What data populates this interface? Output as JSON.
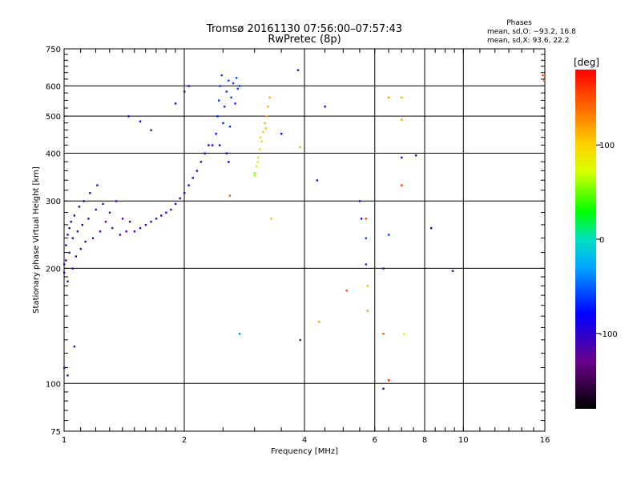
{
  "chart_data": {
    "type": "scatter",
    "title": "Tromsø 20161130 07:56:00–07:57:43",
    "subtitle": "RwPretec (8p)",
    "xlabel": "Frequency [MHz]",
    "ylabel": "Stationary phase Virtual Height [km]",
    "xscale": "log",
    "yscale": "log",
    "xlim": [
      1,
      16
    ],
    "ylim": [
      75,
      750
    ],
    "x_ticks": [
      1,
      2,
      4,
      6,
      8,
      10,
      16
    ],
    "y_ticks": [
      75,
      100,
      200,
      300,
      400,
      500,
      600,
      750
    ],
    "grid": true,
    "phases_box": {
      "title": "Phases",
      "line_o": "mean, sd,O: −93.2, 16.8",
      "line_x": "mean, sd,X:  93.6, 22.2"
    },
    "colorbar": {
      "label": "[deg]",
      "range": [
        -180,
        180
      ],
      "ticks": [
        100,
        0,
        -100
      ]
    },
    "points": [
      {
        "x": 1.0,
        "y": 195,
        "p": -105
      },
      {
        "x": 1.0,
        "y": 205,
        "p": -110
      },
      {
        "x": 1.01,
        "y": 210,
        "p": -100
      },
      {
        "x": 1.01,
        "y": 230,
        "p": -100
      },
      {
        "x": 1.02,
        "y": 245,
        "p": -95
      },
      {
        "x": 1.02,
        "y": 185,
        "p": -110
      },
      {
        "x": 1.03,
        "y": 255,
        "p": -100
      },
      {
        "x": 1.03,
        "y": 220,
        "p": -108
      },
      {
        "x": 1.04,
        "y": 265,
        "p": -95
      },
      {
        "x": 1.05,
        "y": 200,
        "p": -112
      },
      {
        "x": 1.05,
        "y": 240,
        "p": -100
      },
      {
        "x": 1.06,
        "y": 275,
        "p": -95
      },
      {
        "x": 1.07,
        "y": 215,
        "p": -110
      },
      {
        "x": 1.08,
        "y": 250,
        "p": -100
      },
      {
        "x": 1.09,
        "y": 290,
        "p": -95
      },
      {
        "x": 1.1,
        "y": 225,
        "p": -115
      },
      {
        "x": 1.11,
        "y": 260,
        "p": -100
      },
      {
        "x": 1.12,
        "y": 300,
        "p": -100
      },
      {
        "x": 1.13,
        "y": 235,
        "p": -110
      },
      {
        "x": 1.15,
        "y": 270,
        "p": -105
      },
      {
        "x": 1.16,
        "y": 315,
        "p": -100
      },
      {
        "x": 1.18,
        "y": 240,
        "p": -120
      },
      {
        "x": 1.2,
        "y": 285,
        "p": -105
      },
      {
        "x": 1.21,
        "y": 330,
        "p": -95
      },
      {
        "x": 1.23,
        "y": 250,
        "p": -115
      },
      {
        "x": 1.25,
        "y": 295,
        "p": -110
      },
      {
        "x": 1.27,
        "y": 265,
        "p": -125
      },
      {
        "x": 1.3,
        "y": 280,
        "p": -120
      },
      {
        "x": 1.32,
        "y": 255,
        "p": -130
      },
      {
        "x": 1.35,
        "y": 300,
        "p": -110
      },
      {
        "x": 1.38,
        "y": 245,
        "p": -125
      },
      {
        "x": 1.4,
        "y": 270,
        "p": -115
      },
      {
        "x": 1.43,
        "y": 250,
        "p": -120
      },
      {
        "x": 1.46,
        "y": 265,
        "p": -110
      },
      {
        "x": 1.5,
        "y": 250,
        "p": -115
      },
      {
        "x": 1.55,
        "y": 255,
        "p": -110
      },
      {
        "x": 1.6,
        "y": 260,
        "p": -108
      },
      {
        "x": 1.65,
        "y": 265,
        "p": -105
      },
      {
        "x": 1.7,
        "y": 270,
        "p": -105
      },
      {
        "x": 1.75,
        "y": 275,
        "p": -108
      },
      {
        "x": 1.8,
        "y": 280,
        "p": -105
      },
      {
        "x": 1.85,
        "y": 285,
        "p": -100
      },
      {
        "x": 1.9,
        "y": 295,
        "p": -105
      },
      {
        "x": 1.95,
        "y": 305,
        "p": -100
      },
      {
        "x": 2.0,
        "y": 315,
        "p": -100
      },
      {
        "x": 2.05,
        "y": 330,
        "p": -100
      },
      {
        "x": 2.1,
        "y": 345,
        "p": -95
      },
      {
        "x": 2.15,
        "y": 360,
        "p": -95
      },
      {
        "x": 2.2,
        "y": 380,
        "p": -100
      },
      {
        "x": 2.25,
        "y": 400,
        "p": -90
      },
      {
        "x": 2.3,
        "y": 420,
        "p": -90
      },
      {
        "x": 1.45,
        "y": 500,
        "p": -100
      },
      {
        "x": 1.55,
        "y": 485,
        "p": -95
      },
      {
        "x": 1.65,
        "y": 460,
        "p": -110
      },
      {
        "x": 1.9,
        "y": 540,
        "p": -105
      },
      {
        "x": 2.0,
        "y": 580,
        "p": -100
      },
      {
        "x": 2.05,
        "y": 600,
        "p": -95
      },
      {
        "x": 1.0,
        "y": 110,
        "p": -110
      },
      {
        "x": 1.02,
        "y": 105,
        "p": -105
      },
      {
        "x": 1.06,
        "y": 125,
        "p": -100
      },
      {
        "x": 2.4,
        "y": 450,
        "p": -75
      },
      {
        "x": 2.42,
        "y": 500,
        "p": -70
      },
      {
        "x": 2.44,
        "y": 550,
        "p": -65
      },
      {
        "x": 2.46,
        "y": 600,
        "p": -60
      },
      {
        "x": 2.48,
        "y": 640,
        "p": -60
      },
      {
        "x": 2.45,
        "y": 420,
        "p": -80
      },
      {
        "x": 2.5,
        "y": 480,
        "p": -70
      },
      {
        "x": 2.52,
        "y": 530,
        "p": -65
      },
      {
        "x": 2.55,
        "y": 580,
        "p": -62
      },
      {
        "x": 2.58,
        "y": 620,
        "p": -58
      },
      {
        "x": 2.6,
        "y": 470,
        "p": -72
      },
      {
        "x": 2.62,
        "y": 560,
        "p": -65
      },
      {
        "x": 2.65,
        "y": 610,
        "p": -60
      },
      {
        "x": 2.68,
        "y": 540,
        "p": -68
      },
      {
        "x": 2.7,
        "y": 630,
        "p": -60
      },
      {
        "x": 2.55,
        "y": 400,
        "p": -80
      },
      {
        "x": 2.72,
        "y": 590,
        "p": -62
      },
      {
        "x": 2.35,
        "y": 420,
        "p": -85
      },
      {
        "x": 2.58,
        "y": 380,
        "p": -90
      },
      {
        "x": 2.75,
        "y": 600,
        "p": -58
      },
      {
        "x": 3.0,
        "y": 350,
        "p": 60
      },
      {
        "x": 3.03,
        "y": 370,
        "p": 70
      },
      {
        "x": 3.06,
        "y": 390,
        "p": 85
      },
      {
        "x": 3.09,
        "y": 410,
        "p": 95
      },
      {
        "x": 3.12,
        "y": 430,
        "p": 100
      },
      {
        "x": 3.15,
        "y": 455,
        "p": 105
      },
      {
        "x": 3.18,
        "y": 480,
        "p": 110
      },
      {
        "x": 3.21,
        "y": 500,
        "p": 110
      },
      {
        "x": 3.24,
        "y": 530,
        "p": 112
      },
      {
        "x": 3.27,
        "y": 560,
        "p": 115
      },
      {
        "x": 3.1,
        "y": 440,
        "p": 98
      },
      {
        "x": 3.2,
        "y": 465,
        "p": 108
      },
      {
        "x": 3.0,
        "y": 355,
        "p": 55
      },
      {
        "x": 3.05,
        "y": 380,
        "p": 75
      },
      {
        "x": 3.5,
        "y": 450,
        "p": -80
      },
      {
        "x": 3.3,
        "y": 270,
        "p": 110
      },
      {
        "x": 2.6,
        "y": 310,
        "p": 150
      },
      {
        "x": 2.75,
        "y": 135,
        "p": -40
      },
      {
        "x": 3.85,
        "y": 660,
        "p": -110
      },
      {
        "x": 3.9,
        "y": 415,
        "p": 110
      },
      {
        "x": 3.9,
        "y": 130,
        "p": -120
      },
      {
        "x": 4.3,
        "y": 340,
        "p": -100
      },
      {
        "x": 4.35,
        "y": 145,
        "p": 120
      },
      {
        "x": 4.5,
        "y": 530,
        "p": -100
      },
      {
        "x": 5.1,
        "y": 175,
        "p": 150
      },
      {
        "x": 5.5,
        "y": 300,
        "p": -110
      },
      {
        "x": 5.55,
        "y": 270,
        "p": -100
      },
      {
        "x": 5.7,
        "y": 270,
        "p": 160
      },
      {
        "x": 5.7,
        "y": 240,
        "p": -60
      },
      {
        "x": 5.7,
        "y": 205,
        "p": -70
      },
      {
        "x": 5.75,
        "y": 180,
        "p": 110
      },
      {
        "x": 5.75,
        "y": 155,
        "p": 120
      },
      {
        "x": 6.3,
        "y": 200,
        "p": -110
      },
      {
        "x": 6.3,
        "y": 135,
        "p": 150
      },
      {
        "x": 6.3,
        "y": 97,
        "p": -110
      },
      {
        "x": 6.5,
        "y": 560,
        "p": 120
      },
      {
        "x": 6.5,
        "y": 245,
        "p": -60
      },
      {
        "x": 6.5,
        "y": 102,
        "p": 170
      },
      {
        "x": 7.0,
        "y": 560,
        "p": 115
      },
      {
        "x": 7.0,
        "y": 490,
        "p": 120
      },
      {
        "x": 7.0,
        "y": 390,
        "p": -90
      },
      {
        "x": 7.0,
        "y": 330,
        "p": 160
      },
      {
        "x": 7.1,
        "y": 135,
        "p": 70
      },
      {
        "x": 7.6,
        "y": 395,
        "p": -100
      },
      {
        "x": 8.3,
        "y": 255,
        "p": -80
      },
      {
        "x": 9.4,
        "y": 197,
        "p": -120
      },
      {
        "x": 15.8,
        "y": 640,
        "p": 150
      },
      {
        "x": 15.9,
        "y": 620,
        "p": 140
      }
    ]
  }
}
